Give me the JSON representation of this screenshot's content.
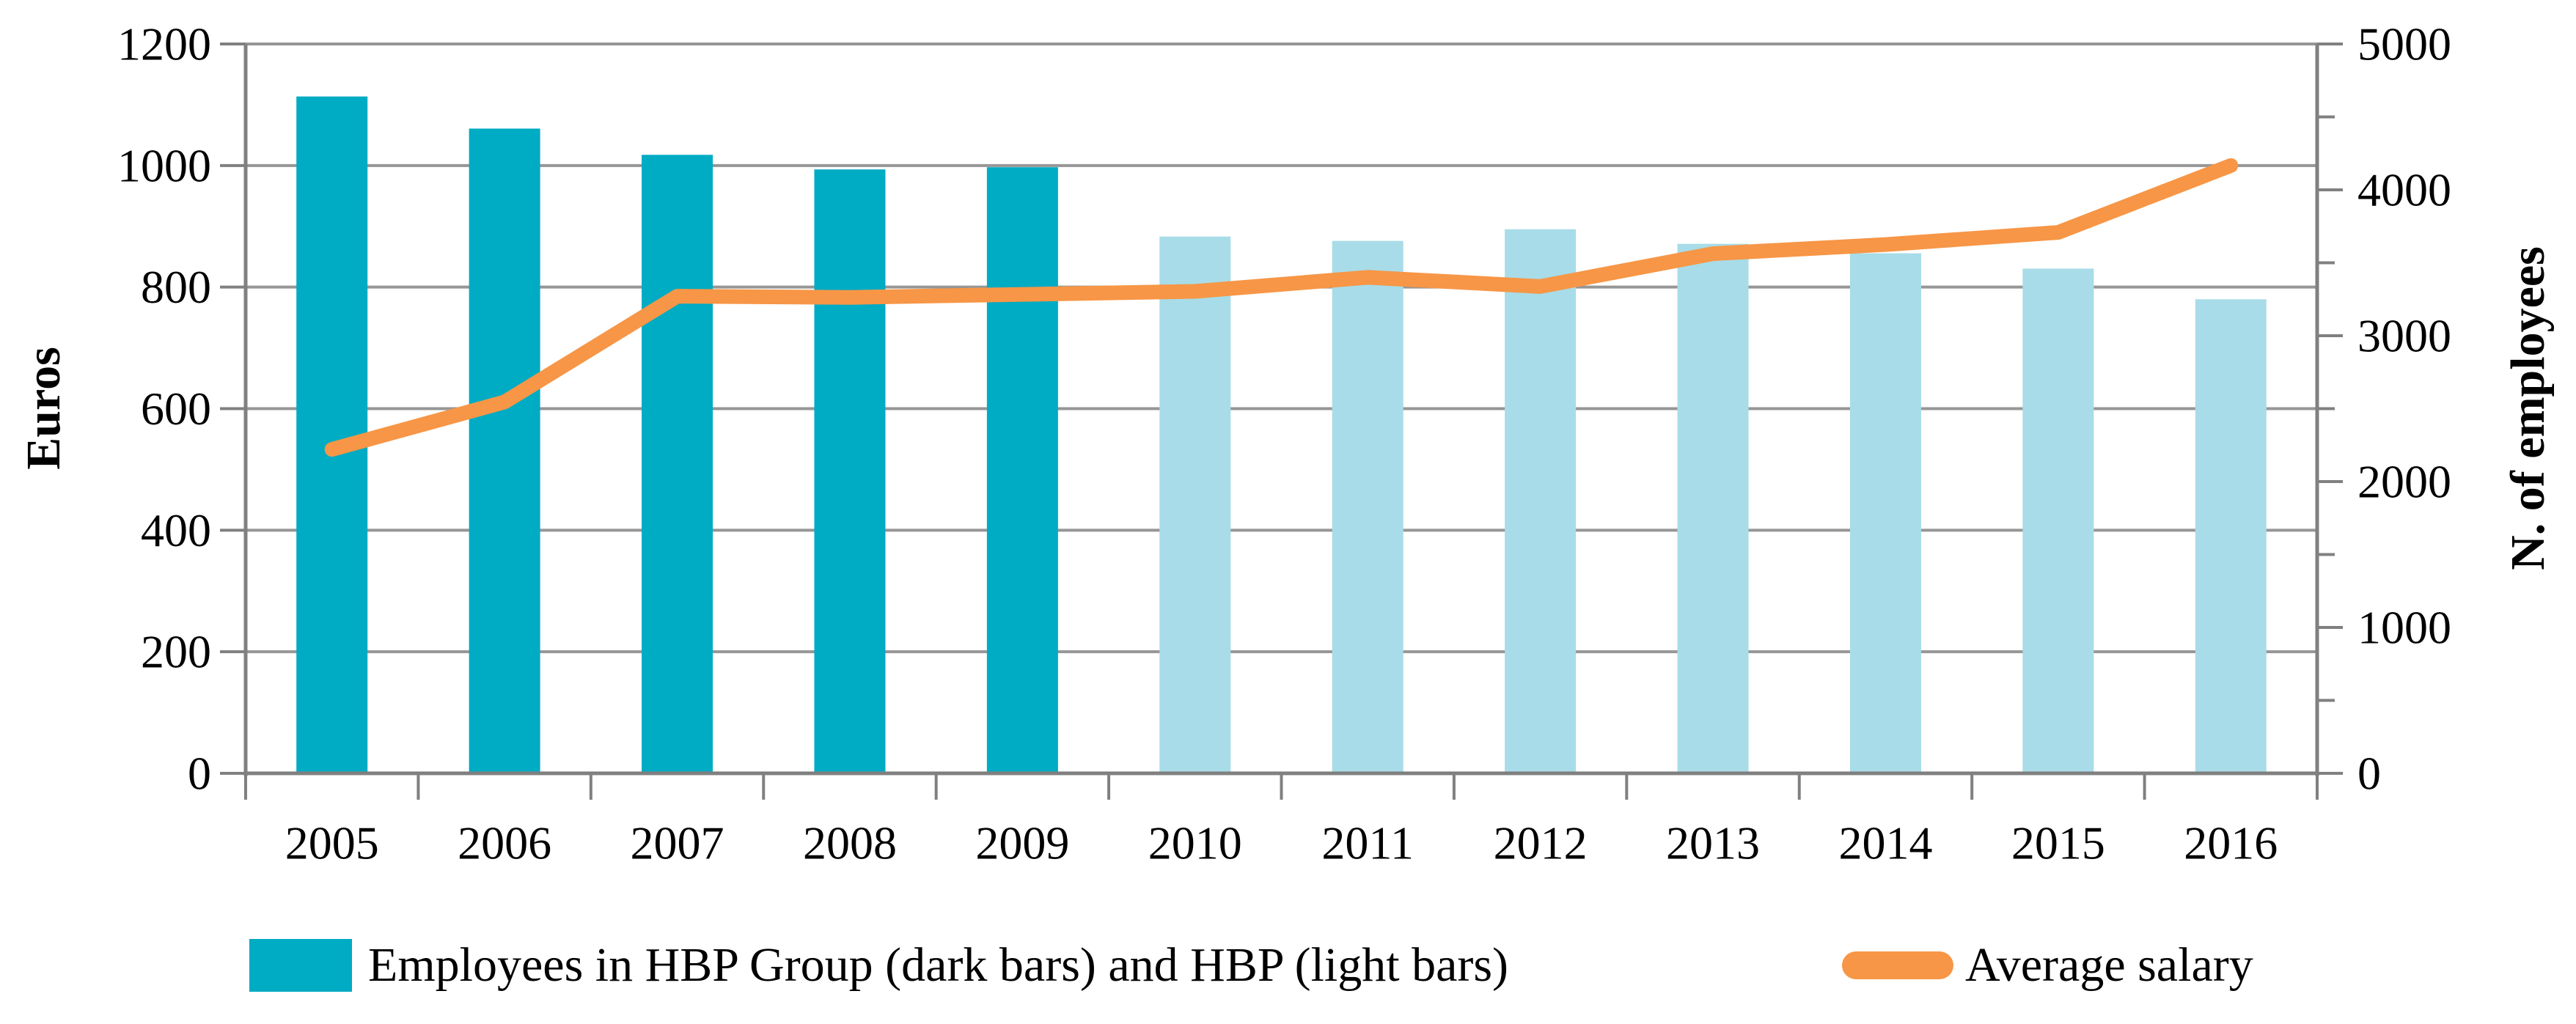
{
  "chart_data": {
    "type": "bar",
    "subtype": "bar-and-line-combo",
    "title": "",
    "categories": [
      "2005",
      "2006",
      "2007",
      "2008",
      "2009",
      "2010",
      "2011",
      "2012",
      "2013",
      "2014",
      "2015",
      "2016"
    ],
    "series": [
      {
        "name": "Employees in HBP Group (dark bars) and HBP (light bars)",
        "type": "bar",
        "axis": "right",
        "values": [
          4640,
          4420,
          4240,
          4140,
          4155,
          3680,
          3650,
          3730,
          3630,
          3565,
          3460,
          3250
        ],
        "bar_styles": [
          "dark",
          "dark",
          "dark",
          "dark",
          "dark",
          "light",
          "light",
          "light",
          "light",
          "light",
          "light",
          "light"
        ]
      },
      {
        "name": "Average salary",
        "type": "line",
        "axis": "left",
        "values": [
          533,
          611,
          785,
          783,
          788,
          793,
          816,
          801,
          855,
          870,
          890,
          1000
        ]
      }
    ],
    "xlabel": "",
    "ylabel_left": "Euros",
    "ylabel_right": "N. of employees",
    "y_left": {
      "min": 0,
      "max": 1200,
      "tick_step": 200,
      "ticks": [
        0,
        200,
        400,
        600,
        800,
        1000,
        1200
      ]
    },
    "y_right": {
      "min": 0,
      "max": 5000,
      "tick_step": 1000,
      "minor_tick_step": 500,
      "ticks": [
        0,
        1000,
        2000,
        3000,
        4000,
        5000
      ]
    },
    "grid": "horizontal-major",
    "legend_position": "bottom",
    "colors": {
      "bar_dark": "#00ABC4",
      "bar_light": "#A8DCE8",
      "line": "#F79646",
      "grid": "#969696",
      "axis": "#808080",
      "text": "#000000",
      "background": "#FFFFFF"
    }
  }
}
